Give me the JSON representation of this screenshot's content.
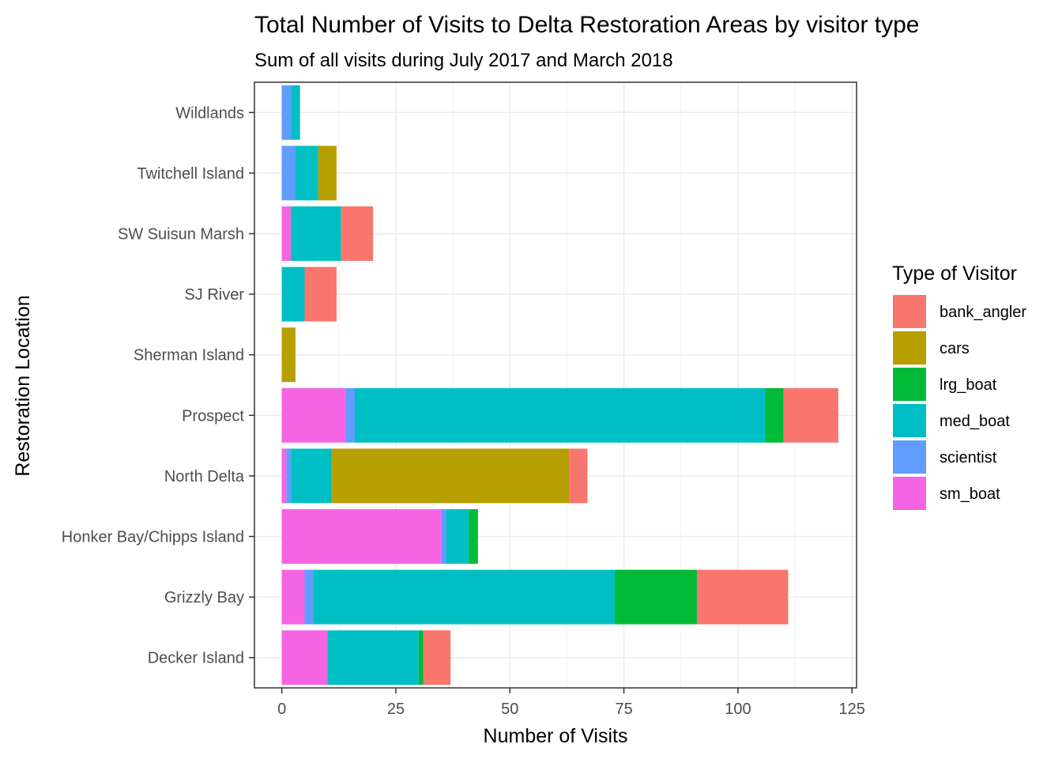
{
  "chart_data": {
    "type": "bar",
    "orientation": "horizontal",
    "stacked": true,
    "title": "Total Number of Visits to Delta Restoration Areas by visitor type",
    "subtitle": "Sum of all visits during July 2017 and March 2018",
    "xlabel": "Number of Visits",
    "ylabel": "Restoration Location",
    "xlim": [
      -6,
      126
    ],
    "xticks": [
      0,
      25,
      50,
      75,
      100,
      125
    ],
    "grid": true,
    "legend": {
      "title": "Type of Visitor",
      "position": "right"
    },
    "categories": [
      "Decker Island",
      "Grizzly Bay",
      "Honker Bay/Chipps Island",
      "North Delta",
      "Prospect",
      "Sherman Island",
      "SJ River",
      "SW Suisun Marsh",
      "Twitchell Island",
      "Wildlands"
    ],
    "stack_order": [
      "sm_boat",
      "scientist",
      "med_boat",
      "lrg_boat",
      "cars",
      "bank_angler"
    ],
    "series": [
      {
        "name": "bank_angler",
        "color": "#F8766D",
        "values": [
          6,
          20,
          0,
          4,
          12,
          0,
          7,
          7,
          0,
          0
        ]
      },
      {
        "name": "cars",
        "color": "#B79F00",
        "values": [
          0,
          0,
          0,
          52,
          0,
          3,
          0,
          0,
          4,
          0
        ]
      },
      {
        "name": "lrg_boat",
        "color": "#00BA38",
        "values": [
          1,
          18,
          2,
          0,
          4,
          0,
          0,
          0,
          0,
          0
        ]
      },
      {
        "name": "med_boat",
        "color": "#00BFC4",
        "values": [
          20,
          66,
          5,
          9,
          90,
          0,
          5,
          11,
          5,
          2
        ]
      },
      {
        "name": "scientist",
        "color": "#619CFF",
        "values": [
          0,
          2,
          1,
          1,
          2,
          0,
          0,
          0,
          3,
          2
        ]
      },
      {
        "name": "sm_boat",
        "color": "#F564E3",
        "values": [
          10,
          5,
          35,
          1,
          14,
          0,
          0,
          2,
          0,
          0
        ]
      }
    ]
  }
}
